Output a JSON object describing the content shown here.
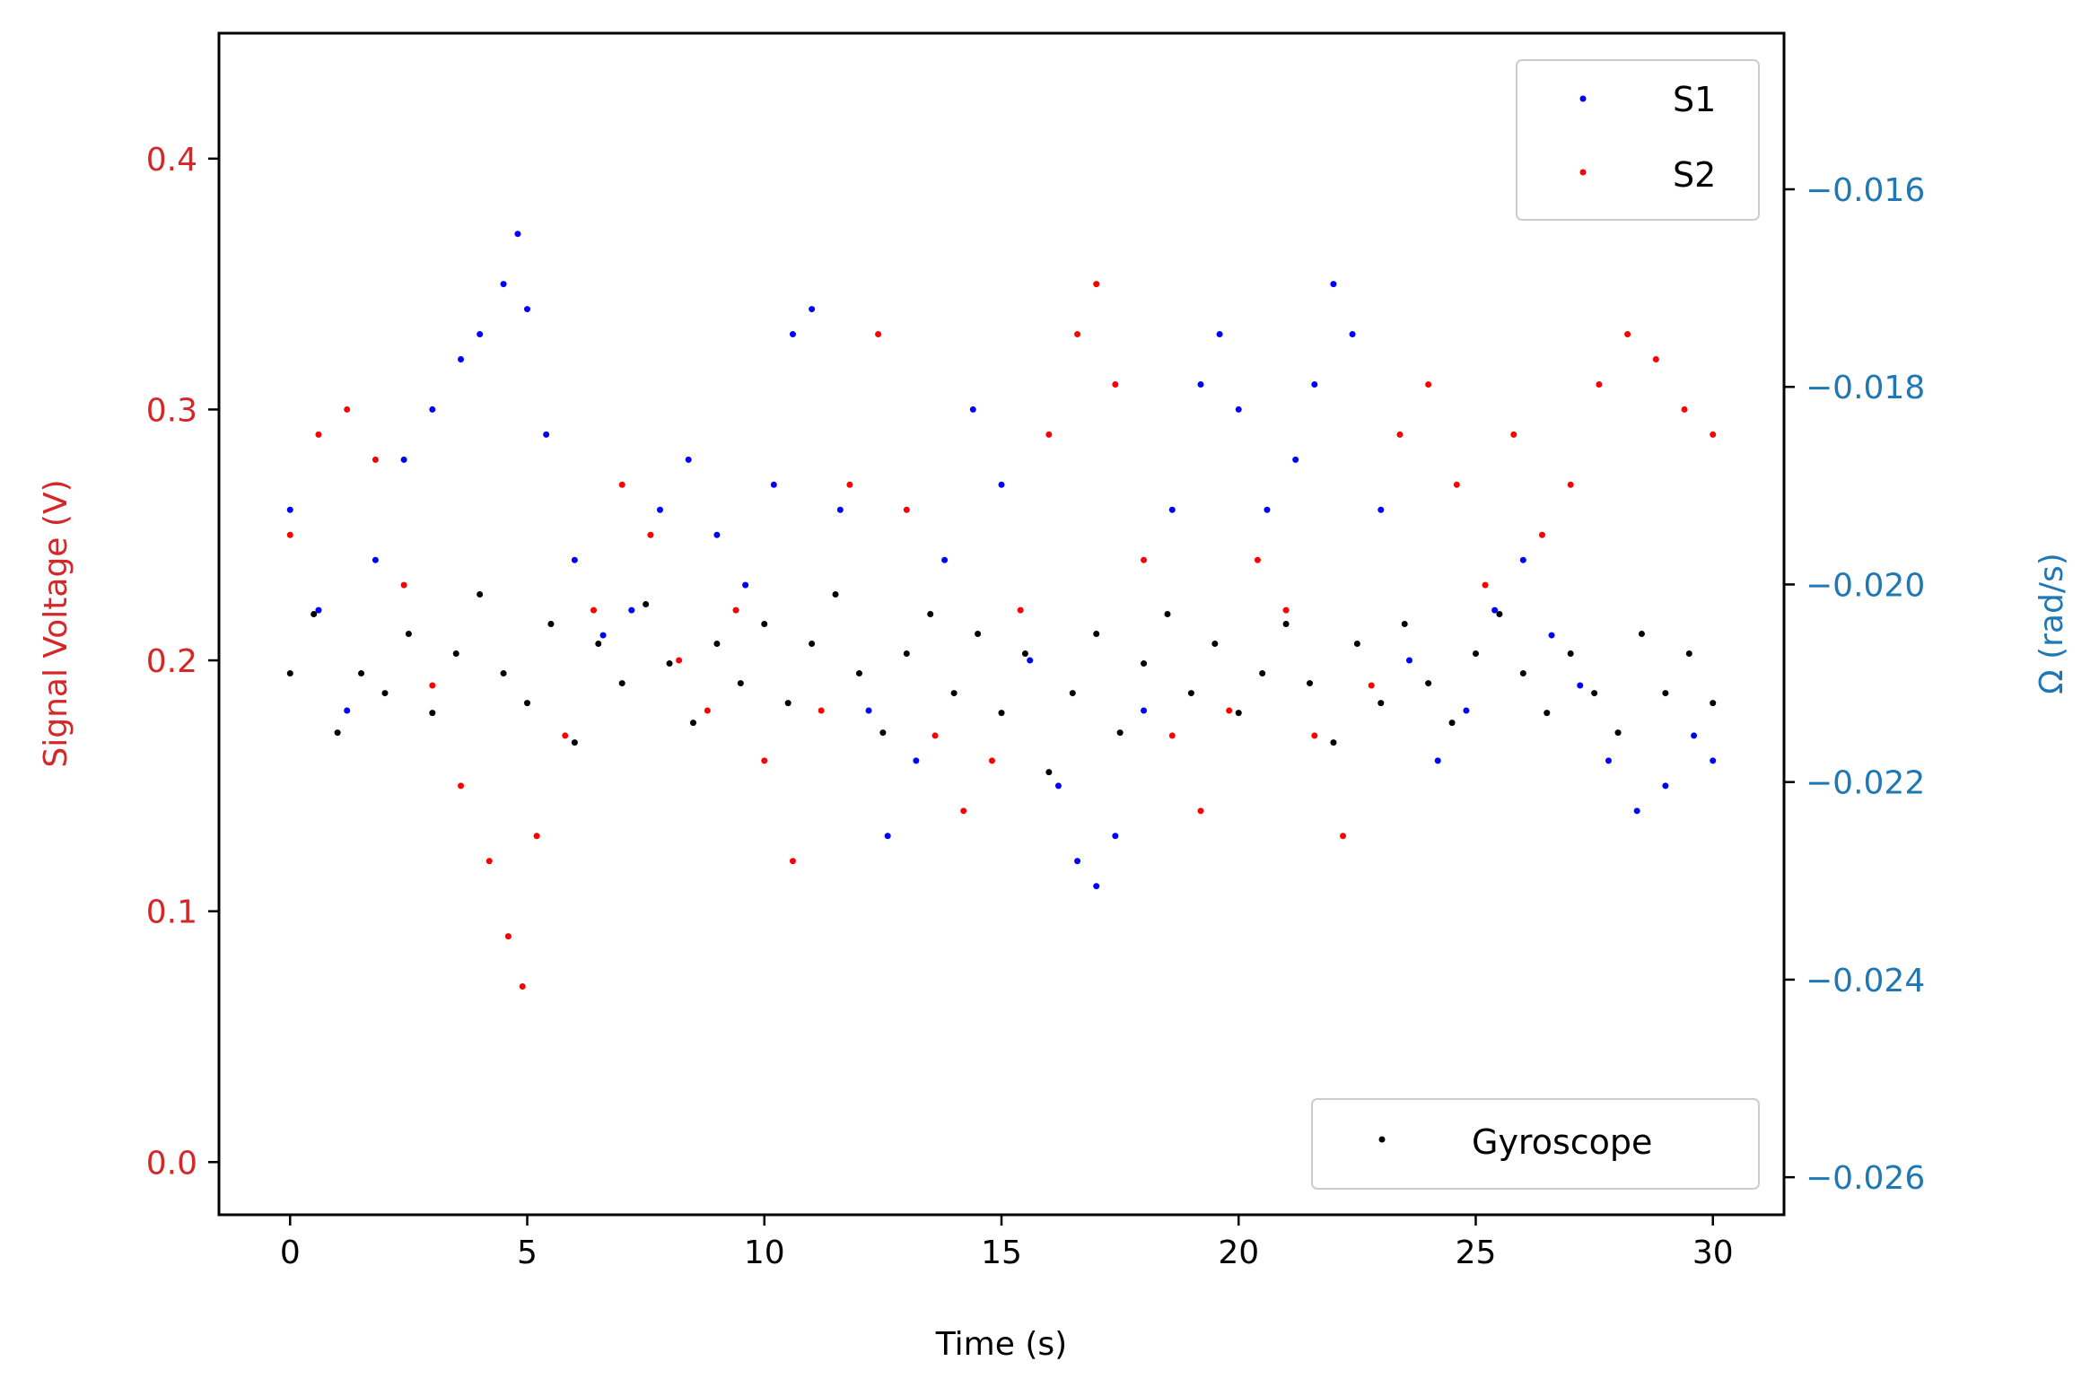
{
  "chart_data": {
    "type": "scatter",
    "xlabel": "Time (s)",
    "ylabel_left": "Signal Voltage (V)",
    "ylabel_right": "Ω (rad/s)",
    "xlim": [
      -1.5,
      31.5
    ],
    "xticks": [
      0,
      5,
      10,
      15,
      20,
      25,
      30
    ],
    "xtick_labels": [
      "0",
      "5",
      "10",
      "15",
      "20",
      "25",
      "30"
    ],
    "ylim_left": [
      -0.021,
      0.45
    ],
    "yticks_left": [
      0.0,
      0.1,
      0.2,
      0.3,
      0.4
    ],
    "ytick_labels_left": [
      "0.0",
      "0.1",
      "0.2",
      "0.3",
      "0.4"
    ],
    "ylim_right": [
      -0.02638,
      -0.01442
    ],
    "yticks_right": [
      -0.026,
      -0.024,
      -0.022,
      -0.02,
      -0.018,
      -0.016
    ],
    "ytick_labels_right": [
      "−0.026",
      "−0.024",
      "−0.022",
      "−0.020",
      "−0.018",
      "−0.016"
    ],
    "grid": false,
    "legend_left_axis": {
      "placement": "upper right",
      "entries": [
        {
          "name": "S1",
          "color": "#0000ff"
        },
        {
          "name": "S2",
          "color": "#ff0000"
        }
      ]
    },
    "legend_right_axis": {
      "placement": "lower right",
      "entries": [
        {
          "name": "Gyroscope",
          "color": "#000000"
        }
      ]
    },
    "colors": {
      "left_axis": "#d62728",
      "right_axis": "#1f77b4",
      "s1": "#0000ff",
      "s2": "#ff0000",
      "gyro": "#000000"
    },
    "series": [
      {
        "name": "S1",
        "axis": "left",
        "color": "#0000ff",
        "x": [
          0.0,
          0.6,
          1.2,
          1.8,
          2.4,
          3.0,
          3.6,
          4.0,
          4.5,
          4.8,
          5.0,
          5.4,
          6.0,
          6.6,
          7.2,
          7.8,
          8.4,
          9.0,
          9.6,
          10.2,
          10.6,
          11.0,
          11.6,
          12.2,
          12.6,
          13.2,
          13.8,
          14.4,
          15.0,
          15.6,
          16.2,
          16.6,
          17.0,
          17.4,
          18.0,
          18.6,
          19.2,
          19.6,
          20.0,
          20.6,
          21.2,
          21.6,
          22.0,
          22.4,
          23.0,
          23.6,
          24.2,
          24.8,
          25.4,
          26.0,
          26.6,
          27.2,
          27.8,
          28.4,
          29.0,
          29.6,
          30.0
        ],
        "y": [
          0.26,
          0.22,
          0.18,
          0.24,
          0.28,
          0.3,
          0.32,
          0.33,
          0.35,
          0.37,
          0.34,
          0.29,
          0.24,
          0.21,
          0.22,
          0.26,
          0.28,
          0.25,
          0.23,
          0.27,
          0.33,
          0.34,
          0.26,
          0.18,
          0.13,
          0.16,
          0.24,
          0.3,
          0.27,
          0.2,
          0.15,
          0.12,
          0.11,
          0.13,
          0.18,
          0.26,
          0.31,
          0.33,
          0.3,
          0.26,
          0.28,
          0.31,
          0.35,
          0.33,
          0.26,
          0.2,
          0.16,
          0.18,
          0.22,
          0.24,
          0.21,
          0.19,
          0.16,
          0.14,
          0.15,
          0.17,
          0.16
        ]
      },
      {
        "name": "S2",
        "axis": "left",
        "color": "#ff0000",
        "x": [
          0.0,
          0.6,
          1.2,
          1.8,
          2.4,
          3.0,
          3.6,
          4.2,
          4.6,
          4.9,
          5.2,
          5.8,
          6.4,
          7.0,
          7.6,
          8.2,
          8.8,
          9.4,
          10.0,
          10.6,
          11.2,
          11.8,
          12.4,
          13.0,
          13.6,
          14.2,
          14.8,
          15.4,
          16.0,
          16.6,
          17.0,
          17.4,
          18.0,
          18.6,
          19.2,
          19.8,
          20.4,
          21.0,
          21.6,
          22.2,
          22.8,
          23.4,
          24.0,
          24.6,
          25.2,
          25.8,
          26.4,
          27.0,
          27.6,
          28.2,
          28.8,
          29.4,
          30.0
        ],
        "y": [
          0.25,
          0.29,
          0.3,
          0.28,
          0.23,
          0.19,
          0.15,
          0.12,
          0.09,
          0.07,
          0.13,
          0.17,
          0.22,
          0.27,
          0.25,
          0.2,
          0.18,
          0.22,
          0.16,
          0.12,
          0.18,
          0.27,
          0.33,
          0.26,
          0.17,
          0.14,
          0.16,
          0.22,
          0.29,
          0.33,
          0.35,
          0.31,
          0.24,
          0.17,
          0.14,
          0.18,
          0.24,
          0.22,
          0.17,
          0.13,
          0.19,
          0.29,
          0.31,
          0.27,
          0.23,
          0.29,
          0.25,
          0.27,
          0.31,
          0.33,
          0.32,
          0.3,
          0.29
        ]
      },
      {
        "name": "Gyroscope",
        "axis": "right",
        "color": "#000000",
        "x": [
          0.0,
          0.5,
          1.0,
          1.5,
          2.0,
          2.5,
          3.0,
          3.5,
          4.0,
          4.5,
          5.0,
          5.5,
          6.0,
          6.5,
          7.0,
          7.5,
          8.0,
          8.5,
          9.0,
          9.5,
          10.0,
          10.5,
          11.0,
          11.5,
          12.0,
          12.5,
          13.0,
          13.5,
          14.0,
          14.5,
          15.0,
          15.5,
          16.0,
          16.5,
          17.0,
          17.5,
          18.0,
          18.5,
          19.0,
          19.5,
          20.0,
          20.5,
          21.0,
          21.5,
          22.0,
          22.5,
          23.0,
          23.5,
          24.0,
          24.5,
          25.0,
          25.5,
          26.0,
          26.5,
          27.0,
          27.5,
          28.0,
          28.5,
          29.0,
          29.5,
          30.0
        ],
        "y": [
          -0.0209,
          -0.0203,
          -0.0215,
          -0.0209,
          -0.0211,
          -0.0205,
          -0.0213,
          -0.0207,
          -0.0201,
          -0.0209,
          -0.0212,
          -0.0204,
          -0.0216,
          -0.0206,
          -0.021,
          -0.0202,
          -0.0208,
          -0.0214,
          -0.0206,
          -0.021,
          -0.0204,
          -0.0212,
          -0.0206,
          -0.0201,
          -0.0209,
          -0.0215,
          -0.0207,
          -0.0203,
          -0.0211,
          -0.0205,
          -0.0213,
          -0.0207,
          -0.0219,
          -0.0211,
          -0.0205,
          -0.0215,
          -0.0208,
          -0.0203,
          -0.0211,
          -0.0206,
          -0.0213,
          -0.0209,
          -0.0204,
          -0.021,
          -0.0216,
          -0.0206,
          -0.0212,
          -0.0204,
          -0.021,
          -0.0214,
          -0.0207,
          -0.0203,
          -0.0209,
          -0.0213,
          -0.0207,
          -0.0211,
          -0.0215,
          -0.0205,
          -0.0211,
          -0.0207,
          -0.0212
        ]
      }
    ]
  }
}
